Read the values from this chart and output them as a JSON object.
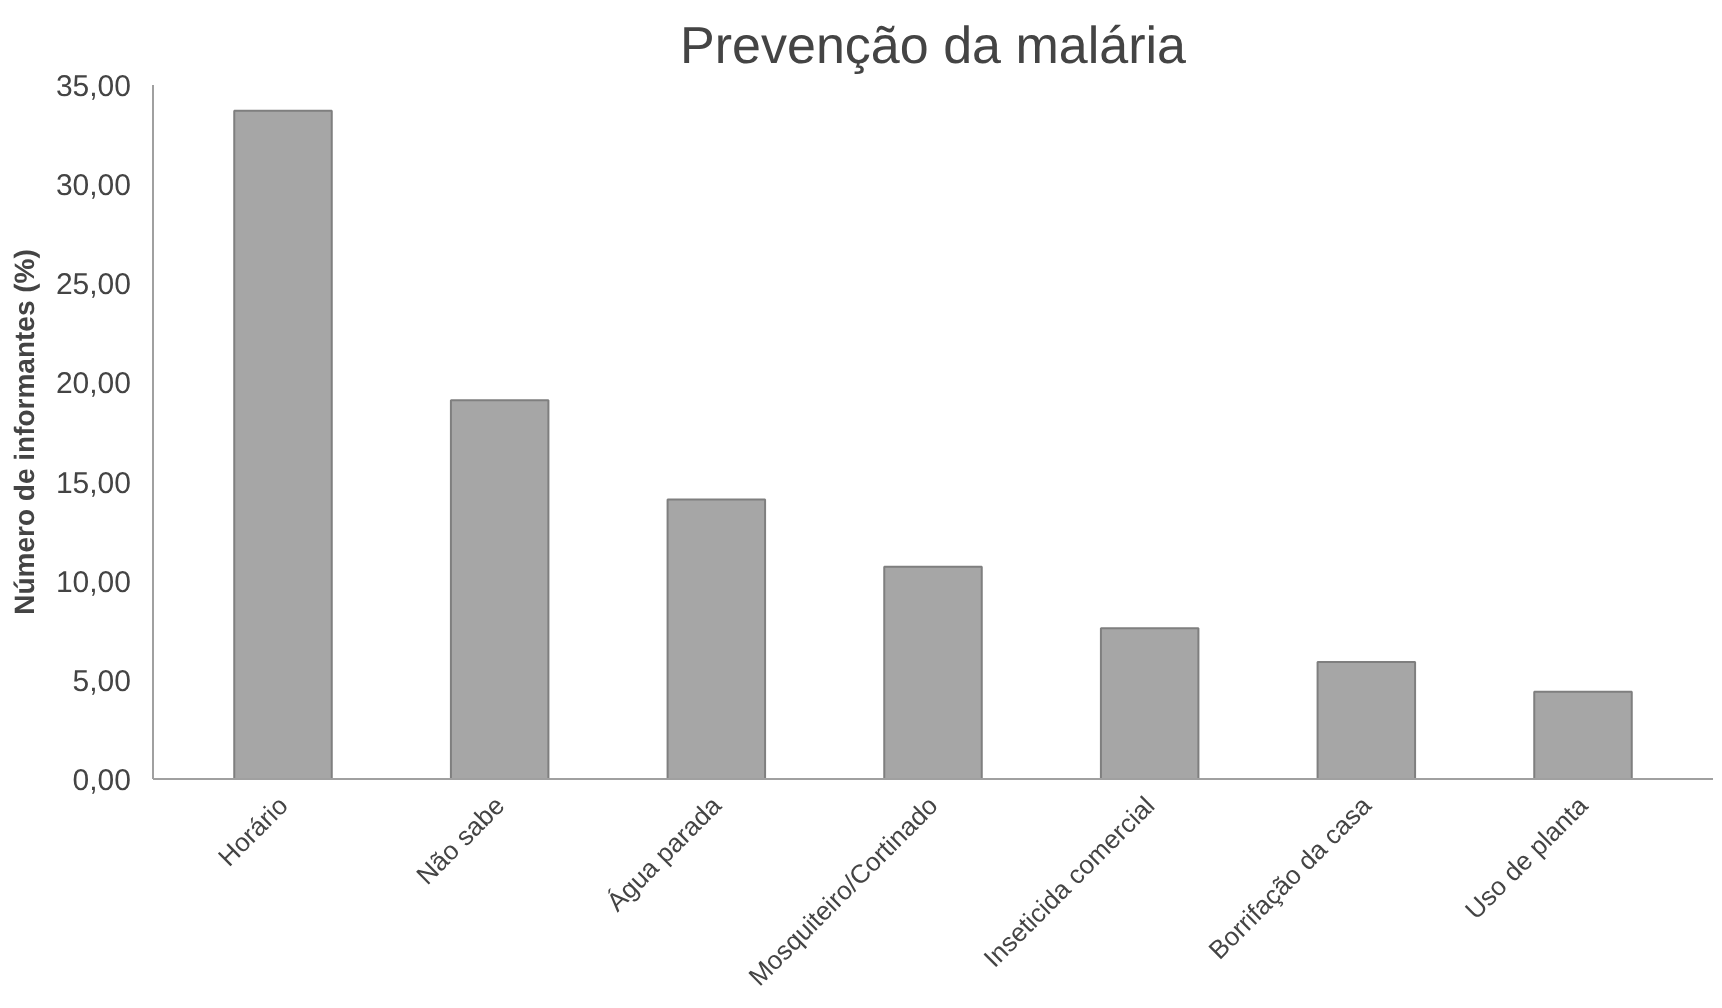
{
  "chart_data": {
    "type": "bar",
    "title": "Prevenção da malária",
    "ylabel": "Número de informantes (%)",
    "categories": [
      "Horário",
      "Não sabe",
      "Água parada",
      "Mosquiteiro/Cortinado",
      "Inseticida comercial",
      "Borrifação da casa",
      "Uso de planta"
    ],
    "values": [
      33.7,
      19.1,
      14.1,
      10.7,
      7.6,
      5.9,
      4.4
    ],
    "color": "#a6a6a6",
    "ylim": [
      0,
      35
    ],
    "yticks": [
      {
        "value": 0,
        "label": "0,00"
      },
      {
        "value": 5,
        "label": "5,00"
      },
      {
        "value": 10,
        "label": "10,00"
      },
      {
        "value": 15,
        "label": "15,00"
      },
      {
        "value": 20,
        "label": "20,00"
      },
      {
        "value": 25,
        "label": "25,00"
      },
      {
        "value": 30,
        "label": "30,00"
      },
      {
        "value": 35,
        "label": "35,00"
      }
    ],
    "grid": false
  }
}
